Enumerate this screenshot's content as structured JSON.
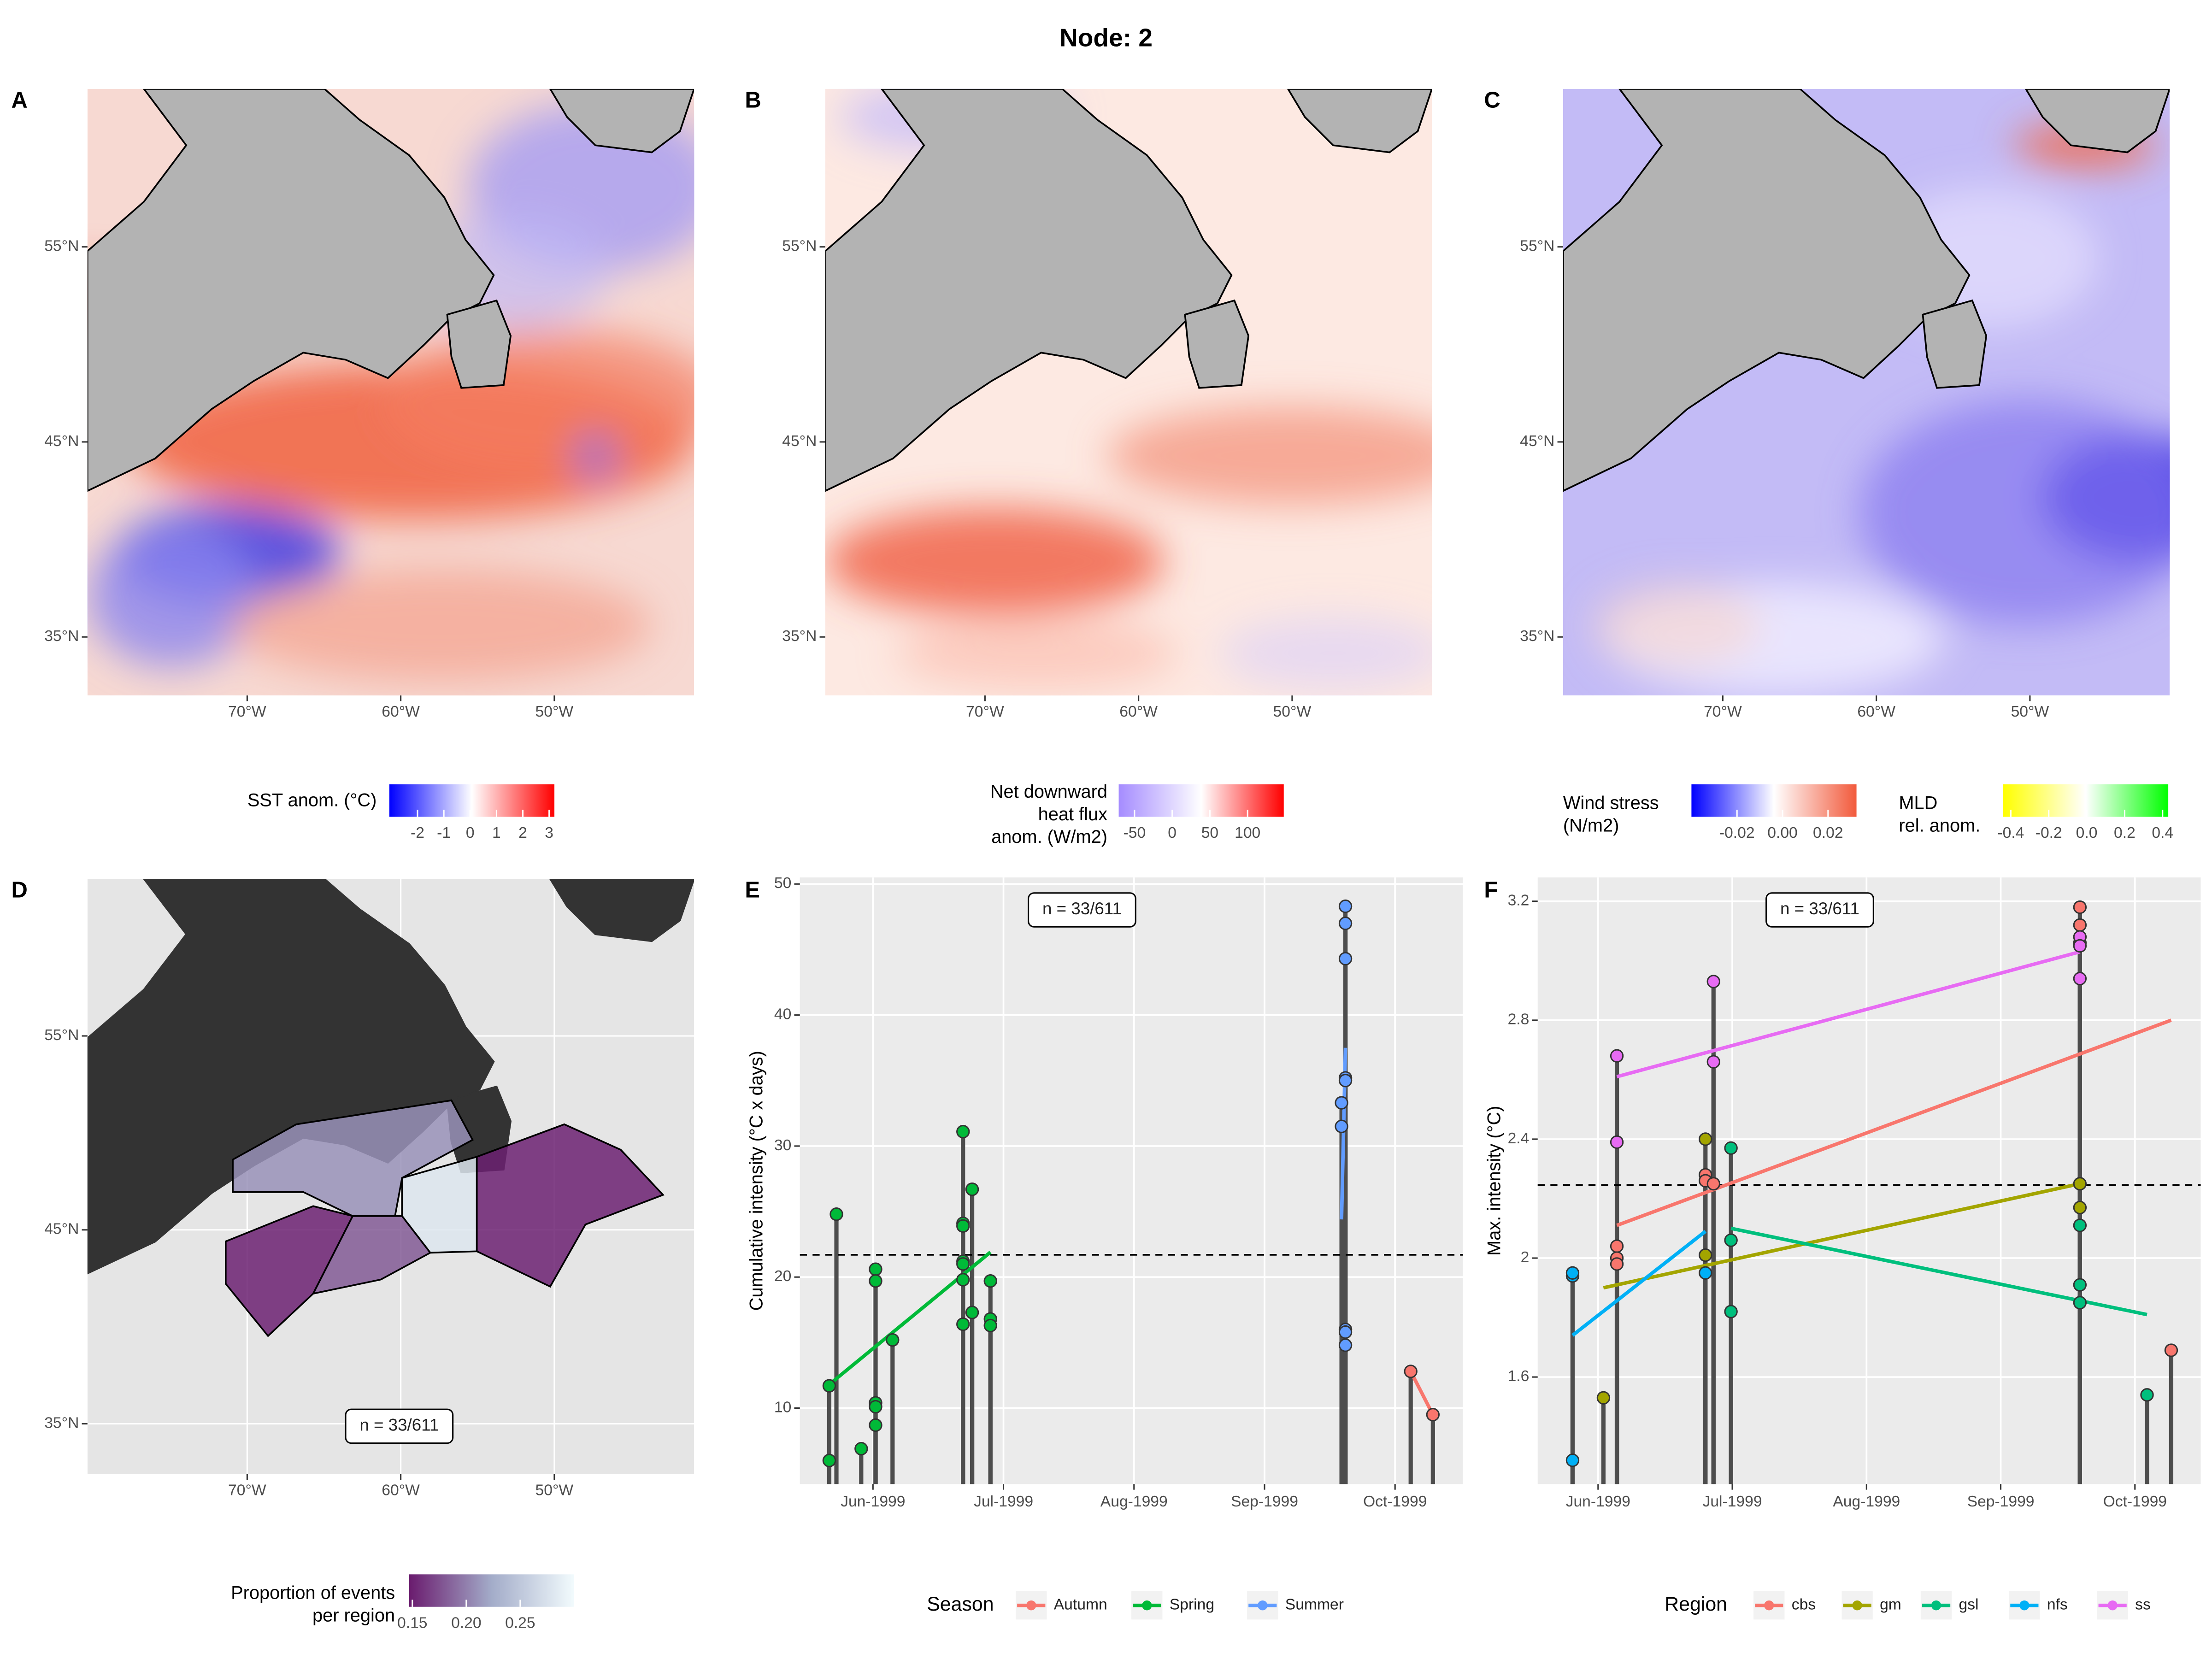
{
  "title": "Node: 2",
  "chart_data": [
    {
      "type": "map",
      "label": "A",
      "xlim": [
        -80.4,
        -40.9
      ],
      "ylim": [
        32.0,
        63.1
      ],
      "xticks": [
        {
          "value": -70,
          "label": "70°W"
        },
        {
          "value": -60,
          "label": "60°W"
        },
        {
          "value": -50,
          "label": "50°W"
        }
      ],
      "yticks": [
        {
          "value": 35,
          "label": "35°N"
        },
        {
          "value": 45,
          "label": "45°N"
        },
        {
          "value": 55,
          "label": "55°N"
        }
      ],
      "grid": false,
      "colorbars": [
        {
          "title": [
            "SST anom. (°C)"
          ],
          "lim": [
            -3.07,
            3.2
          ],
          "ticks": [
            -2,
            -1,
            0,
            1,
            2,
            3
          ],
          "colors": [
            "#0000ff",
            "#ffffff",
            "#ff0000"
          ]
        }
      ]
    },
    {
      "type": "map",
      "label": "B",
      "xlim": [
        -80.4,
        -40.9
      ],
      "ylim": [
        32.0,
        63.1
      ],
      "xticks": [
        {
          "value": -70,
          "label": "70°W"
        },
        {
          "value": -60,
          "label": "60°W"
        },
        {
          "value": -50,
          "label": "50°W"
        }
      ],
      "yticks": [
        {
          "value": 35,
          "label": "35°N"
        },
        {
          "value": 45,
          "label": "45°N"
        },
        {
          "value": 55,
          "label": "55°N"
        }
      ],
      "grid": false,
      "colorbars": [
        {
          "title": [
            "Net downward",
            "heat flux",
            "anom. (W/m2)"
          ],
          "lim": [
            -71,
            148
          ],
          "ticks": [
            -50,
            0,
            50,
            100
          ],
          "colors": [
            "#a58cff",
            "#ffffff",
            "#ff0000"
          ]
        }
      ]
    },
    {
      "type": "map",
      "label": "C",
      "xlim": [
        -80.4,
        -40.9
      ],
      "ylim": [
        32.0,
        63.1
      ],
      "xticks": [
        {
          "value": -70,
          "label": "70°W"
        },
        {
          "value": -60,
          "label": "60°W"
        },
        {
          "value": -50,
          "label": "50°W"
        }
      ],
      "yticks": [
        {
          "value": 35,
          "label": "35°N"
        },
        {
          "value": 45,
          "label": "45°N"
        },
        {
          "value": 55,
          "label": "55°N"
        }
      ],
      "grid": false,
      "colorbars": [
        {
          "title": [
            "Wind stress",
            "(N/m2)"
          ],
          "lim": [
            -0.04,
            0.0325
          ],
          "ticks": [
            -0.02,
            {
              "value": 0,
              "label": "0.00"
            },
            0.02
          ],
          "colors": [
            "#0000ff",
            "#ffffff",
            "#f25a3c"
          ]
        },
        {
          "title": [
            "MLD",
            "rel. anom."
          ],
          "lim": [
            -0.44,
            0.43
          ],
          "ticks": [
            -0.4,
            -0.2,
            {
              "value": 0,
              "label": "0.0"
            },
            0.2,
            0.4
          ],
          "colors": [
            "#ffff00",
            "#ffffff",
            "#00ff00"
          ]
        }
      ]
    },
    {
      "type": "region-map",
      "label": "D",
      "xlim": [
        -80.4,
        -40.9
      ],
      "ylim": [
        32.4,
        63.1
      ],
      "xticks": [
        {
          "value": -70,
          "label": "70°W"
        },
        {
          "value": -60,
          "label": "60°W"
        },
        {
          "value": -50,
          "label": "50°W"
        }
      ],
      "yticks": [
        {
          "value": 35,
          "label": "35°N"
        },
        {
          "value": 45,
          "label": "45°N"
        },
        {
          "value": 55,
          "label": "55°N"
        }
      ],
      "grid": true,
      "values": [
        0.21,
        0.28,
        0.15,
        0.15,
        0.18
      ],
      "annotation": "n = 33/611",
      "colorbars": [
        {
          "title": [
            "Proportion of events",
            "per region"
          ],
          "lim": [
            0.147,
            0.3
          ],
          "ticks": [
            0.15,
            {
              "value": 0.2,
              "label": "0.20"
            },
            0.25
          ],
          "colors": [
            "#6a1b6e",
            "#a3acc9",
            "#f2fbfd"
          ]
        }
      ]
    },
    {
      "type": "lollipop",
      "label": "E",
      "ylabel": "Cumulative intensity (°C x days)",
      "xlim": [
        5.44,
        10.52
      ],
      "ylim": [
        4.2,
        50.5
      ],
      "xticks": [
        {
          "value": 6,
          "label": "Jun-1999"
        },
        {
          "value": 7,
          "label": "Jul-1999"
        },
        {
          "value": 8,
          "label": "Aug-1999"
        },
        {
          "value": 9,
          "label": "Sep-1999"
        },
        {
          "value": 10,
          "label": "Oct-1999"
        }
      ],
      "yticks": [
        10,
        20,
        30,
        40,
        50
      ],
      "grid": true,
      "hline": 21.7,
      "annotation": "n = 33/611",
      "legend_title": "Season",
      "series": [
        {
          "name": "Autumn",
          "color": "#F8766D",
          "x": [
            10.12,
            10.29
          ],
          "values": [
            12.8,
            9.5
          ],
          "trend": {
            "x": [
              10.12,
              10.29
            ],
            "values": [
              12.8,
              9.5
            ]
          }
        },
        {
          "name": "Spring",
          "color": "#00BA38",
          "x": [
            5.665,
            5.665,
            5.72,
            5.91,
            6.02,
            6.02,
            6.02,
            6.02,
            6.02,
            6.15,
            6.69,
            6.69,
            6.69,
            6.69,
            6.69,
            6.69,
            6.69,
            6.76,
            6.76,
            6.9,
            6.9,
            6.9
          ],
          "values": [
            11.7,
            6.0,
            24.8,
            6.9,
            20.6,
            19.7,
            10.4,
            10.1,
            8.7,
            15.2,
            31.1,
            24.1,
            23.9,
            21.2,
            21.0,
            19.8,
            16.4,
            26.7,
            17.3,
            19.7,
            16.8,
            16.3
          ],
          "trend": {
            "x": [
              5.665,
              6.9
            ],
            "values": [
              11.8,
              21.9
            ]
          }
        },
        {
          "name": "Summer",
          "color": "#619CFF",
          "x": [
            9.59,
            9.59,
            9.62,
            9.62,
            9.62,
            9.62,
            9.62,
            9.62,
            9.62,
            9.62
          ],
          "values": [
            33.3,
            31.5,
            48.3,
            47.0,
            44.3,
            35.2,
            35.0,
            16.0,
            15.8,
            14.8
          ],
          "trend": {
            "x": [
              9.59,
              9.62
            ],
            "values": [
              24.4,
              37.5
            ]
          }
        }
      ]
    },
    {
      "type": "lollipop",
      "label": "F",
      "ylabel": "Max. intensity (°C)",
      "xlim": [
        5.55,
        10.49
      ],
      "ylim": [
        1.24,
        3.28
      ],
      "xticks": [
        {
          "value": 6,
          "label": "Jun-1999"
        },
        {
          "value": 7,
          "label": "Jul-1999"
        },
        {
          "value": 8,
          "label": "Aug-1999"
        },
        {
          "value": 9,
          "label": "Sep-1999"
        },
        {
          "value": 10,
          "label": "Oct-1999"
        }
      ],
      "yticks": [
        1.6,
        2.0,
        2.4,
        2.8,
        3.2
      ],
      "grid": true,
      "hline": 2.246,
      "annotation": "n = 33/611",
      "legend_title": "Region",
      "series": [
        {
          "name": "cbs",
          "color": "#F8766D",
          "x": [
            6.14,
            6.14,
            6.14,
            6.8,
            6.8,
            6.86,
            9.59,
            9.59,
            9.59,
            10.27
          ],
          "values": [
            2.04,
            2.0,
            1.98,
            2.28,
            2.26,
            2.25,
            3.18,
            3.12,
            3.06,
            1.69
          ],
          "trend": {
            "x": [
              6.14,
              10.27
            ],
            "values": [
              2.11,
              2.8
            ]
          }
        },
        {
          "name": "gm",
          "color": "#A3A500",
          "x": [
            6.04,
            6.8,
            6.8,
            9.59,
            9.59
          ],
          "values": [
            1.53,
            2.4,
            2.01,
            2.25,
            2.17
          ],
          "trend": {
            "x": [
              6.04,
              9.59
            ],
            "values": [
              1.9,
              2.25
            ]
          }
        },
        {
          "name": "gsl",
          "color": "#00BF7D",
          "x": [
            6.99,
            6.99,
            6.99,
            9.59,
            9.59,
            9.59,
            10.09
          ],
          "values": [
            2.37,
            2.06,
            1.82,
            2.11,
            1.91,
            1.85,
            1.54
          ],
          "trend": {
            "x": [
              6.99,
              10.09
            ],
            "values": [
              2.1,
              1.81
            ]
          }
        },
        {
          "name": "nfs",
          "color": "#00B0F6",
          "x": [
            5.81,
            5.81,
            5.81,
            6.8
          ],
          "values": [
            1.94,
            1.95,
            1.32,
            1.95
          ],
          "trend": {
            "x": [
              5.81,
              6.8
            ],
            "values": [
              1.74,
              2.09
            ]
          }
        },
        {
          "name": "ss",
          "color": "#E76BF3",
          "x": [
            6.14,
            6.14,
            6.86,
            6.86,
            9.59,
            9.59,
            9.59
          ],
          "values": [
            2.68,
            2.39,
            2.93,
            2.66,
            3.08,
            3.05,
            2.94
          ],
          "trend": {
            "x": [
              6.14,
              9.59
            ],
            "values": [
              2.61,
              3.03
            ]
          }
        }
      ]
    }
  ]
}
